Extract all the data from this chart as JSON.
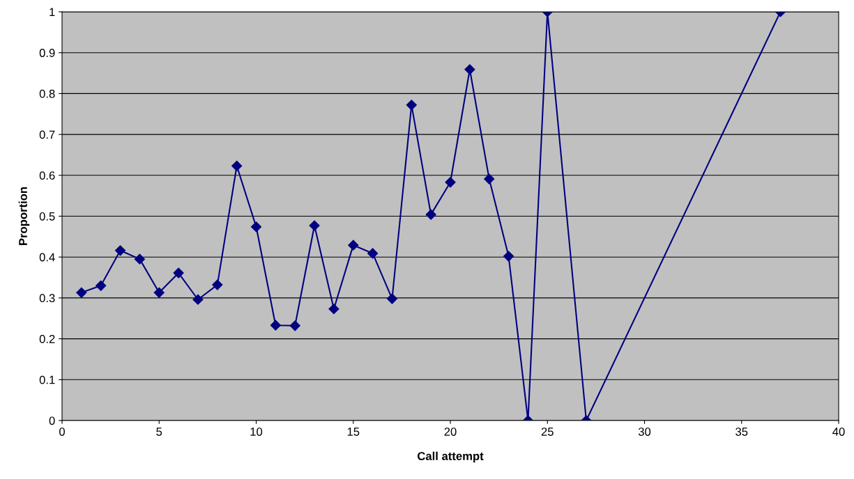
{
  "chart_data": {
    "type": "line",
    "xlabel": "Call attempt",
    "ylabel": "Proportion",
    "x": [
      1,
      2,
      3,
      4,
      5,
      6,
      7,
      8,
      9,
      10,
      11,
      12,
      13,
      14,
      15,
      16,
      17,
      18,
      19,
      20,
      21,
      22,
      23,
      24,
      25,
      27,
      37
    ],
    "series": [
      {
        "color": "#000080",
        "values": [
          0.313,
          0.33,
          0.416,
          0.395,
          0.313,
          0.361,
          0.296,
          0.332,
          0.623,
          0.474,
          0.233,
          0.232,
          0.477,
          0.273,
          0.429,
          0.409,
          0.298,
          0.772,
          0.504,
          0.583,
          0.859,
          0.591,
          0.402,
          0,
          1,
          0,
          1
        ]
      }
    ],
    "xlim": [
      0,
      40
    ],
    "xticks": [
      0,
      5,
      10,
      15,
      20,
      25,
      30,
      35,
      40
    ],
    "ylim": [
      0,
      1
    ],
    "yticks": [
      0,
      0.1,
      0.2,
      0.3,
      0.4,
      0.5,
      0.6,
      0.7,
      0.8,
      0.9,
      1
    ],
    "grid": "y",
    "marker": "diamond",
    "line_style": "solid",
    "legend": false
  }
}
